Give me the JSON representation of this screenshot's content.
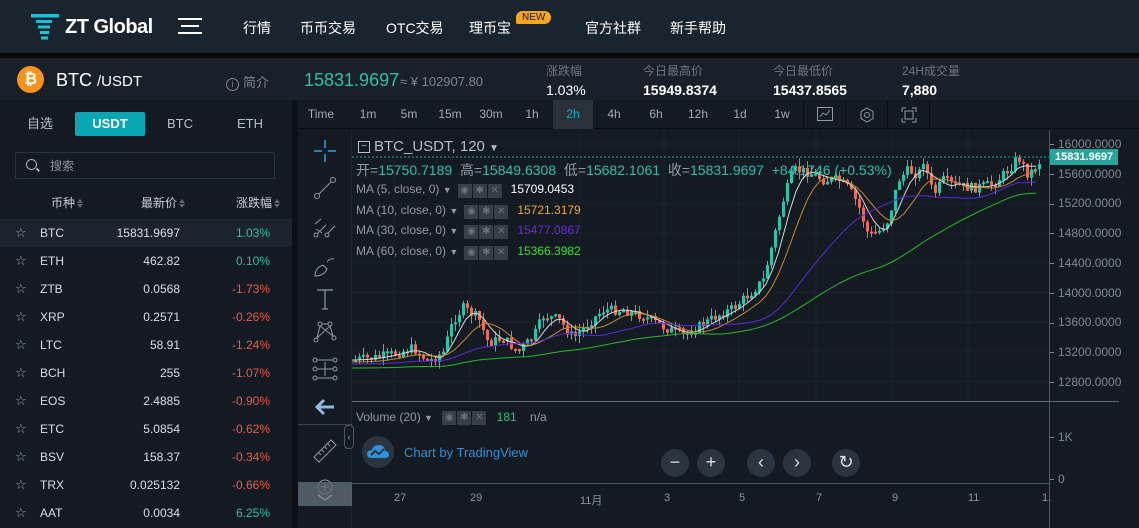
{
  "brand": {
    "name": "ZT Global",
    "logo_color": "#17c3d4"
  },
  "nav": {
    "items": [
      "行情",
      "币币交易",
      "OTC交易",
      "理币宝",
      "官方社群",
      "新手帮助"
    ],
    "new_badge": "NEW"
  },
  "ticker": {
    "base": "BTC",
    "quote": "/USDT",
    "coin_icon": "₿",
    "intro_label": "简介",
    "last_price": "15831.9697",
    "cny_price": "≈ ¥ 102907.80",
    "stats": [
      {
        "label": "涨跌幅",
        "value": "1.03%",
        "color": "#2fbfa7"
      },
      {
        "label": "今日最高价",
        "value": "15949.8374",
        "color": "#ffffff"
      },
      {
        "label": "今日最低价",
        "value": "15437.8565",
        "color": "#ffffff"
      },
      {
        "label": "24H成交量",
        "value": "7,880",
        "color": "#ffffff"
      }
    ]
  },
  "sidebar": {
    "tabs": [
      "自选",
      "USDT",
      "BTC",
      "ETH"
    ],
    "active_tab": "USDT",
    "search": {
      "placeholder": "搜索",
      "value": ""
    },
    "columns": [
      "币种",
      "最新价",
      "涨跌幅"
    ],
    "rows": [
      {
        "symbol": "BTC",
        "price": "15831.9697",
        "change": "1.03%",
        "dir": "up"
      },
      {
        "symbol": "ETH",
        "price": "462.82",
        "change": "0.10%",
        "dir": "up"
      },
      {
        "symbol": "ZTB",
        "price": "0.0568",
        "change": "-1.73%",
        "dir": "down"
      },
      {
        "symbol": "XRP",
        "price": "0.2571",
        "change": "-0.26%",
        "dir": "down"
      },
      {
        "symbol": "LTC",
        "price": "58.91",
        "change": "-1.24%",
        "dir": "down"
      },
      {
        "symbol": "BCH",
        "price": "255",
        "change": "-1.07%",
        "dir": "down"
      },
      {
        "symbol": "EOS",
        "price": "2.4885",
        "change": "-0.90%",
        "dir": "down"
      },
      {
        "symbol": "ETC",
        "price": "5.0854",
        "change": "-0.62%",
        "dir": "down"
      },
      {
        "symbol": "BSV",
        "price": "158.37",
        "change": "-0.34%",
        "dir": "down"
      },
      {
        "symbol": "TRX",
        "price": "0.025132",
        "change": "-0.66%",
        "dir": "down"
      },
      {
        "symbol": "AAT",
        "price": "0.0034",
        "change": "6.25%",
        "dir": "up"
      }
    ]
  },
  "chart": {
    "intervals": [
      "Time",
      "1m",
      "5m",
      "15m",
      "30m",
      "1h",
      "2h",
      "4h",
      "6h",
      "12h",
      "1d",
      "1w"
    ],
    "active_interval": "2h",
    "toolbar_icons": [
      "indicators-icon",
      "settings-icon",
      "fullscreen-icon"
    ],
    "left_tools": [
      "crosshair-icon",
      "trendline-icon",
      "pitchfork-icon",
      "brush-icon",
      "text-icon",
      "pattern-icon",
      "measure-icon",
      "back-arrow-icon",
      "ruler-icon",
      "zoom-in-icon"
    ],
    "symbol_title": "BTC_USDT, 120",
    "ohlc": {
      "open_label": "开=",
      "open": "15750.7189",
      "high_label": "高=",
      "high": "15849.6308",
      "low_label": "低=",
      "low": "15682.1061",
      "close_label": "收=",
      "close": "15831.9697",
      "change": "+84.1746 (+0.53%)"
    },
    "studies": [
      {
        "label": "MA (5, close, 0)",
        "value": "15709.0453",
        "color": "#ffffff"
      },
      {
        "label": "MA (10, close, 0)",
        "value": "15721.3179",
        "color": "#f5a623"
      },
      {
        "label": "MA (30, close, 0)",
        "value": "15477.0867",
        "color": "#6a2bd9"
      },
      {
        "label": "MA (60, close, 0)",
        "value": "15366.3982",
        "color": "#2ee82e"
      }
    ],
    "current_price_tag": "15831.9697",
    "y_ticks": [
      "16000.0000",
      "15600.0000",
      "15200.0000",
      "14800.0000",
      "14400.0000",
      "14000.0000",
      "13600.0000",
      "13200.0000",
      "12800.0000"
    ],
    "volume": {
      "label": "Volume (20)",
      "value": "181",
      "ma_value": "n/a",
      "y_ticks": [
        "1K",
        "0"
      ]
    },
    "x_ticks": [
      "27",
      "29",
      "11月",
      "3",
      "5",
      "7",
      "9",
      "11",
      "1."
    ],
    "watermark": "Chart by TradingView",
    "nav_buttons": [
      "−",
      "+",
      "‹",
      "›",
      "↻"
    ],
    "up_color": "#26c6a8",
    "down_color": "#ef6a5c"
  }
}
